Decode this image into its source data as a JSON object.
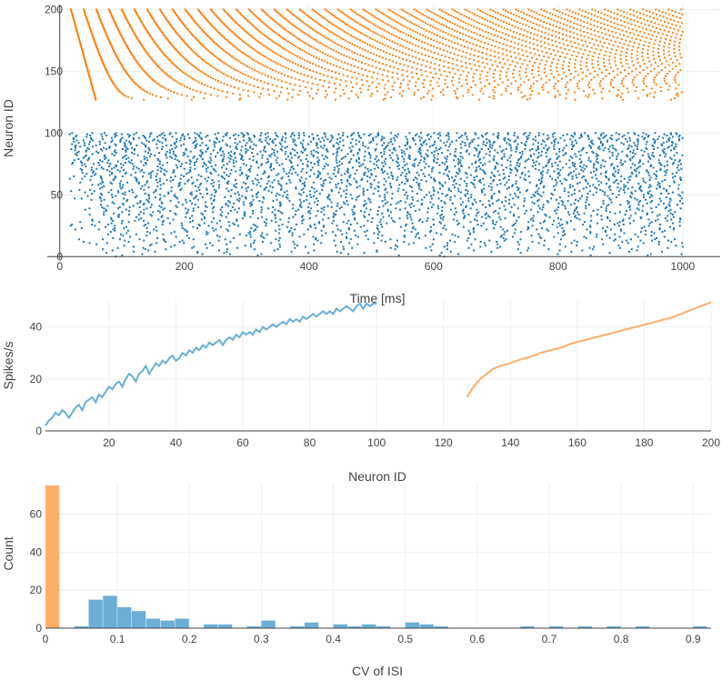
{
  "chart_data": [
    {
      "type": "scatter",
      "subtype": "raster",
      "xlabel": "Time [ms]",
      "ylabel": "Neuron ID",
      "xlim": [
        -20,
        1060
      ],
      "ylim": [
        -2,
        204
      ],
      "xticks": [
        0,
        200,
        400,
        600,
        800,
        1000
      ],
      "yticks": [
        0,
        50,
        100,
        150,
        200
      ],
      "grid": true,
      "series": [
        {
          "color": "#1f77b4",
          "neuron_range": [
            0,
            100
          ],
          "first_spike_ms_range": [
            15,
            250
          ],
          "last_spike_ms": 1000
        },
        {
          "color": "#ff7f0e",
          "neuron_range": [
            127,
            200
          ],
          "first_spike_ms_range": [
            18,
            80
          ],
          "last_spike_ms": 1000
        }
      ]
    },
    {
      "type": "line",
      "xlabel": "Neuron ID",
      "ylabel": "Spikes/s",
      "xlim": [
        1,
        200
      ],
      "ylim": [
        0,
        50
      ],
      "xticks": [
        20,
        40,
        60,
        80,
        100,
        120,
        140,
        160,
        180,
        200
      ],
      "yticks": [
        0,
        20,
        40
      ],
      "grid": true,
      "series": [
        {
          "color": "#6baed6",
          "x": [
            1,
            2,
            3,
            4,
            5,
            6,
            7,
            8,
            9,
            10,
            11,
            12,
            13,
            14,
            15,
            16,
            17,
            18,
            19,
            20,
            21,
            22,
            23,
            24,
            25,
            26,
            27,
            28,
            29,
            30,
            31,
            32,
            33,
            34,
            35,
            36,
            37,
            38,
            39,
            40,
            41,
            42,
            43,
            44,
            45,
            46,
            47,
            48,
            49,
            50,
            51,
            52,
            53,
            54,
            55,
            56,
            57,
            58,
            59,
            60,
            61,
            62,
            63,
            64,
            65,
            66,
            67,
            68,
            69,
            70,
            71,
            72,
            73,
            74,
            75,
            76,
            77,
            78,
            79,
            80,
            81,
            82,
            83,
            84,
            85,
            86,
            87,
            88,
            89,
            90,
            91,
            92,
            93,
            94,
            95,
            96,
            97,
            98,
            99,
            100
          ],
          "values": [
            2,
            4,
            5,
            7,
            6,
            8,
            7,
            5,
            7,
            9,
            10,
            8,
            11,
            12,
            13,
            11,
            14,
            13,
            15,
            17,
            16,
            18,
            19,
            17,
            20,
            22,
            21,
            19,
            22,
            23,
            25,
            22,
            24,
            26,
            25,
            27,
            26,
            28,
            29,
            27,
            28,
            30,
            29,
            31,
            30,
            32,
            31,
            33,
            32,
            34,
            33,
            34,
            35,
            33,
            35,
            36,
            35,
            37,
            36,
            38,
            37,
            38,
            37,
            39,
            38,
            40,
            39,
            40,
            41,
            40,
            41,
            42,
            41,
            43,
            42,
            43,
            42,
            44,
            43,
            44,
            45,
            44,
            45,
            46,
            45,
            46,
            45,
            47,
            46,
            47,
            48,
            47,
            46,
            48,
            49,
            47,
            49,
            48,
            49,
            49
          ]
        },
        {
          "color": "#fdae6b",
          "x": [
            127,
            129,
            131,
            133,
            135,
            137,
            140,
            143,
            146,
            149,
            152,
            155,
            158,
            161,
            164,
            167,
            170,
            173,
            176,
            179,
            182,
            185,
            188,
            191,
            194,
            197,
            200
          ],
          "values": [
            13.0,
            17.0,
            20.0,
            22.0,
            24.0,
            25.0,
            26.0,
            27.5,
            28.5,
            30.0,
            31.0,
            32.0,
            33.5,
            34.5,
            35.5,
            36.5,
            37.5,
            38.5,
            39.5,
            40.5,
            41.5,
            42.5,
            43.5,
            45.0,
            46.5,
            48.0,
            49.5
          ]
        }
      ]
    },
    {
      "type": "histogram",
      "xlabel": "CV of ISI",
      "ylabel": "Count",
      "xlim": [
        0,
        0.925
      ],
      "ylim": [
        0,
        76
      ],
      "xticks": [
        0,
        0.1,
        0.2,
        0.3,
        0.4,
        0.5,
        0.6,
        0.7,
        0.8,
        0.9
      ],
      "yticks": [
        0,
        20,
        40,
        60
      ],
      "grid": true,
      "bin_width": 0.02,
      "series": [
        {
          "color": "#fdae6b",
          "bin_starts": [
            0.0
          ],
          "counts": [
            75
          ]
        },
        {
          "color": "#6baed6",
          "bin_starts": [
            0.04,
            0.06,
            0.08,
            0.1,
            0.12,
            0.14,
            0.16,
            0.18,
            0.22,
            0.24,
            0.28,
            0.3,
            0.34,
            0.36,
            0.4,
            0.42,
            0.44,
            0.46,
            0.5,
            0.52,
            0.54,
            0.66,
            0.7,
            0.74,
            0.78,
            0.82,
            0.9
          ],
          "counts": [
            1,
            15,
            17,
            11,
            9,
            5,
            4,
            5,
            2,
            2,
            1,
            4,
            1,
            3,
            2,
            1,
            2,
            1,
            3,
            2,
            1,
            1,
            1,
            1,
            1,
            1,
            1
          ]
        }
      ]
    }
  ]
}
